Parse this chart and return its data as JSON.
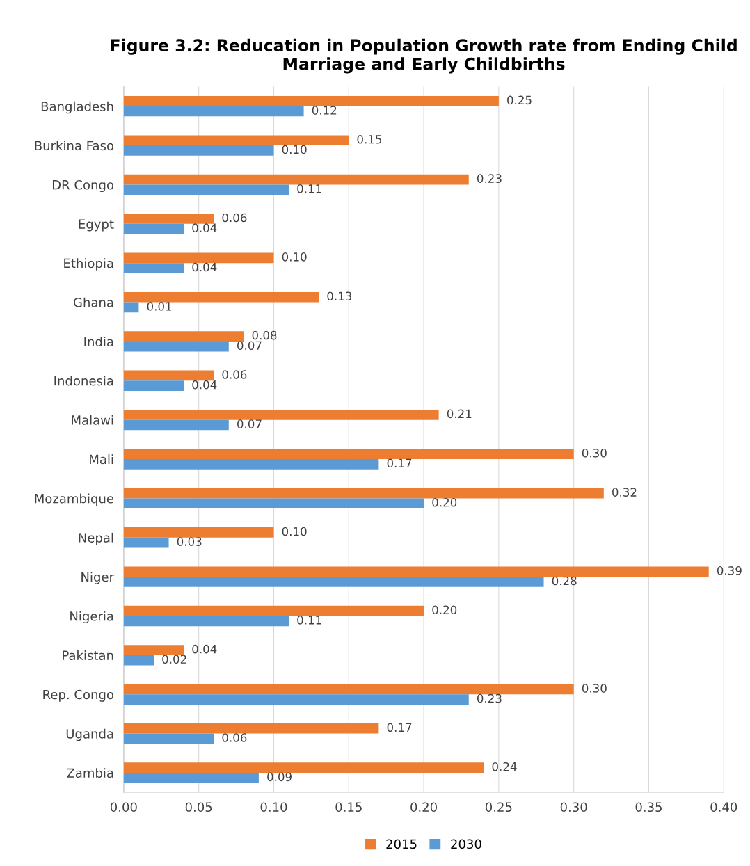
{
  "chart_data": {
    "type": "bar",
    "orientation": "horizontal",
    "title": "Figure 3.2: Reducation in Population Growth rate from Ending Child Marriage and Early Childbirths",
    "categories": [
      "Bangladesh",
      "Burkina Faso",
      "DR Congo",
      "Egypt",
      "Ethiopia",
      "Ghana",
      "India",
      "Indonesia",
      "Malawi",
      "Mali",
      "Mozambique",
      "Nepal",
      "Niger",
      "Nigeria",
      "Pakistan",
      "Rep. Congo",
      "Uganda",
      "Zambia"
    ],
    "series": [
      {
        "name": "2015",
        "color": "#ed7d31",
        "values": [
          0.25,
          0.15,
          0.23,
          0.06,
          0.1,
          0.13,
          0.08,
          0.06,
          0.21,
          0.3,
          0.32,
          0.1,
          0.39,
          0.2,
          0.04,
          0.3,
          0.17,
          0.24
        ],
        "value_labels": [
          "0.25",
          "0.15",
          "0.23",
          "0.06",
          "0.10",
          "0.13",
          "0.08",
          "0.06",
          "0.21",
          "0.30",
          "0.32",
          "0.10",
          "0.39",
          "0.20",
          "0.04",
          "0.30",
          "0.17",
          "0.24"
        ]
      },
      {
        "name": "2030",
        "color": "#5b9bd5",
        "values": [
          0.12,
          0.1,
          0.11,
          0.04,
          0.04,
          0.01,
          0.07,
          0.04,
          0.07,
          0.17,
          0.2,
          0.03,
          0.28,
          0.11,
          0.02,
          0.23,
          0.06,
          0.09
        ],
        "value_labels": [
          "0.12",
          "0.10",
          "0.11",
          "0.04",
          "0.04",
          "0.01",
          "0.07",
          "0.04",
          "0.07",
          "0.17",
          "0.20",
          "0.03",
          "0.28",
          "0.11",
          "0.02",
          "0.23",
          "0.06",
          "0.09"
        ]
      }
    ],
    "xlim": [
      0,
      0.4
    ],
    "xticks": [
      {
        "value": 0,
        "label": "0.00"
      },
      {
        "value": 0.05,
        "label": "0.05"
      },
      {
        "value": 0.1,
        "label": "0.10"
      },
      {
        "value": 0.15,
        "label": "0.15"
      },
      {
        "value": 0.2,
        "label": "0.20"
      },
      {
        "value": 0.25,
        "label": "0.25"
      },
      {
        "value": 0.3,
        "label": "0.30"
      },
      {
        "value": 0.35,
        "label": "0.35"
      },
      {
        "value": 0.4,
        "label": "0.40"
      }
    ],
    "grid": "x",
    "legend": "bottom"
  }
}
